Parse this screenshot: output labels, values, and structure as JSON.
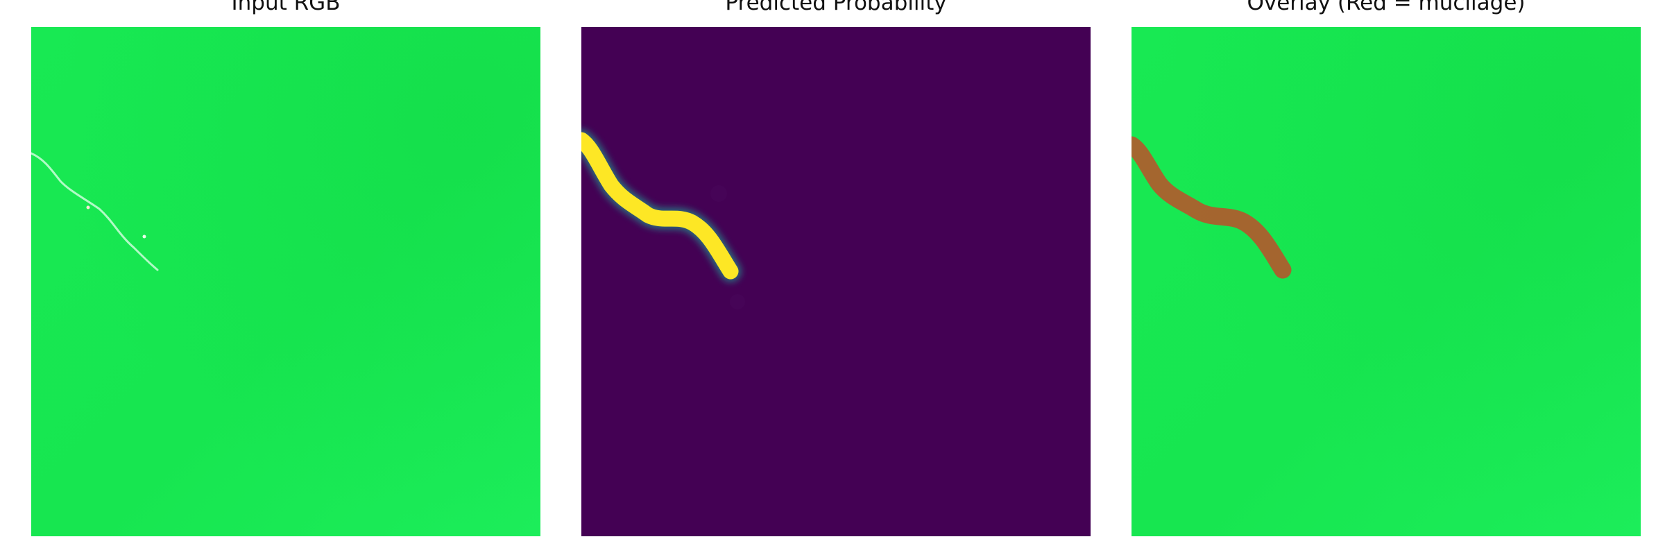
{
  "figure": {
    "panels": [
      {
        "title": "Input RGB"
      },
      {
        "title": "Predicted Probability"
      },
      {
        "title": "Overlay (Red = mucilage)"
      }
    ]
  },
  "colors": {
    "water_green": "#19ea55",
    "water_green_dark": "#14d84a",
    "probability_background": "#440154",
    "probability_high": "#fde725",
    "probability_edge": "#21918c",
    "overlay_mucilage": "#b15a2c"
  }
}
